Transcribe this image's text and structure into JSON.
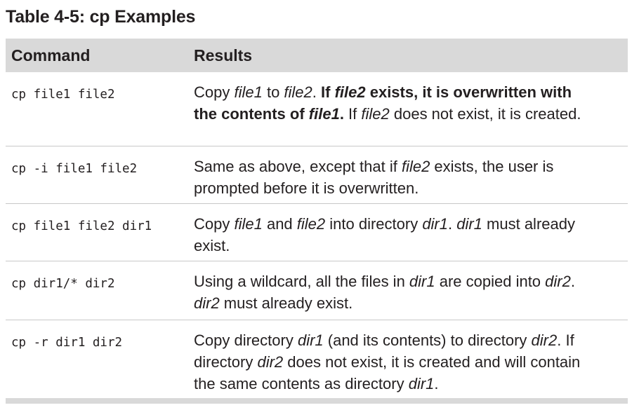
{
  "caption": "Table 4-5: cp Examples",
  "columns": {
    "command": "Command",
    "results": "Results"
  },
  "rows": [
    {
      "command": "cp file1 file2",
      "result": {
        "s1": "Copy ",
        "s2": "file1",
        "s3": " to ",
        "s4": "file2",
        "s5": ". ",
        "s6": "If ",
        "s7": "file2",
        "s8": " exists, it is overwritten with the contents of ",
        "s9": "file1",
        "s10": ".",
        "s11": " If ",
        "s12": "file2",
        "s13": " does not exist, it is created."
      }
    },
    {
      "command": "cp -i file1 file2",
      "result": {
        "s1": "Same as above, except that if ",
        "s2": "file2",
        "s3": " exists, the user is prompted before it is overwritten."
      }
    },
    {
      "command": "cp file1 file2 dir1",
      "result": {
        "s1": "Copy ",
        "s2": "file1",
        "s3": " and ",
        "s4": "file2",
        "s5": " into directory ",
        "s6": "dir1",
        "s7": ". ",
        "s8": "dir1",
        "s9": " must already exist."
      }
    },
    {
      "command": "cp dir1/* dir2",
      "result": {
        "s1": "Using a wildcard, all the files in ",
        "s2": "dir1",
        "s3": " are copied into ",
        "s4": "dir2",
        "s5": ". ",
        "s6": "dir2",
        "s7": " must already exist."
      }
    },
    {
      "command": "cp -r dir1 dir2",
      "result": {
        "s1": "Copy directory ",
        "s2": "dir1",
        "s3": " (and its contents) to directory ",
        "s4": "dir2",
        "s5": ". If directory ",
        "s6": "dir2",
        "s7": " does not exist, it is created and will contain the same contents as directory ",
        "s8": "dir1",
        "s9": "."
      }
    }
  ]
}
